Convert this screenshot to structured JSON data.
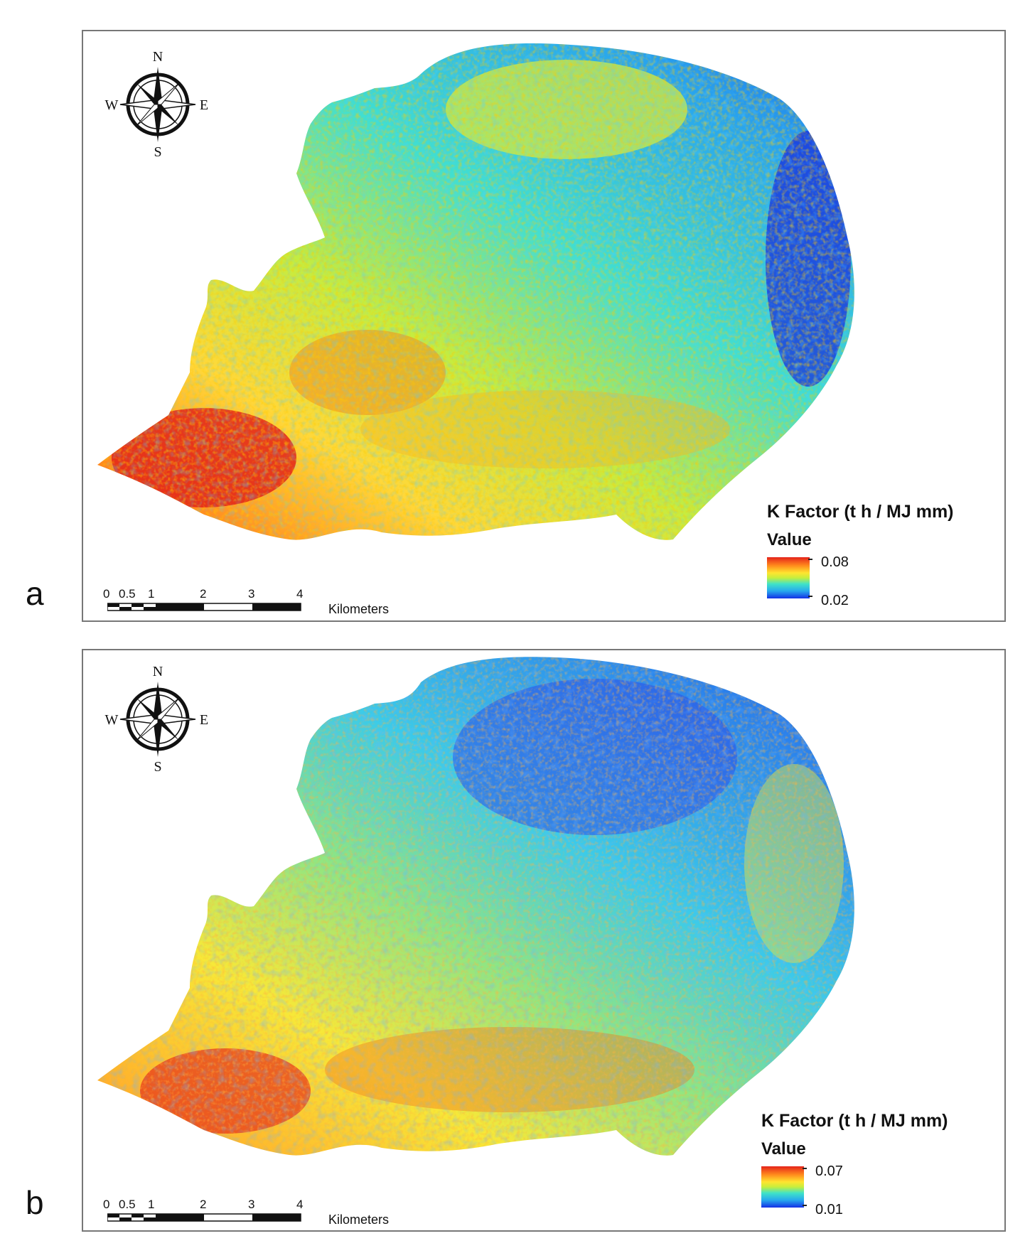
{
  "panels": [
    {
      "letter": "a",
      "compass": {
        "n": "N",
        "s": "S",
        "e": "E",
        "w": "W"
      },
      "scale": {
        "ticks": [
          "0",
          "0.5",
          "1",
          "2",
          "3",
          "4"
        ],
        "unit": "Kilometers"
      },
      "legend": {
        "title": "K Factor (t h / MJ mm)",
        "subtitle": "Value",
        "max": "0.08",
        "min": "0.02"
      },
      "colors": {
        "low": "#1430e6",
        "mid": "#3fe3c8",
        "high": "#e5231b"
      }
    },
    {
      "letter": "b",
      "compass": {
        "n": "N",
        "s": "S",
        "e": "E",
        "w": "W"
      },
      "scale": {
        "ticks": [
          "0",
          "0.5",
          "1",
          "2",
          "3",
          "4"
        ],
        "unit": "Kilometers"
      },
      "legend": {
        "title": "K Factor (t h / MJ mm)",
        "subtitle": "Value",
        "max": "0.07",
        "min": "0.01"
      },
      "colors": {
        "low": "#1430e6",
        "mid": "#3fe3c8",
        "high": "#e5231b"
      }
    }
  ]
}
